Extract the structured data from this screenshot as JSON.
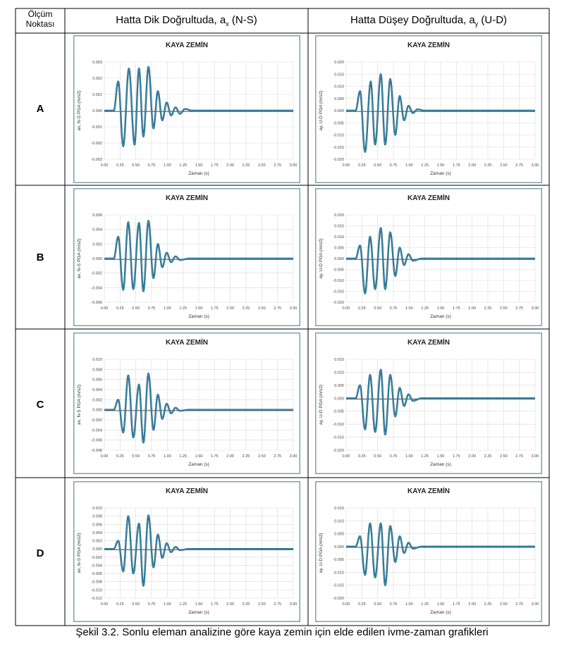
{
  "table": {
    "header_col1": [
      "Ölçüm",
      "Noktası"
    ],
    "header_col2_main": "Hatta Dik Doğrultuda, a",
    "header_col2_sub": "x",
    "header_col2_tail": " (N-S)",
    "header_col3_main": "Hatta Düşey Doğrultuda, a",
    "header_col3_sub": "y",
    "header_col3_tail": " (U-D)",
    "rows": [
      "A",
      "B",
      "C",
      "D"
    ]
  },
  "caption": "Şekil 3.2. Sonlu eleman analizine göre kaya zemin için elde edilen ivme-zaman grafikleri",
  "colors": {
    "line": "#3a8fb0",
    "line_dark": "#1e4f66",
    "baseline": "#555555",
    "grid": "#d9d9d9",
    "panel_border": "#7fa3ad",
    "panel_bg": "#ffffff"
  },
  "chart_data": [
    {
      "type": "line",
      "row": "A",
      "col": "N-S",
      "title": "KAYA ZEMİN",
      "xlabel": "Zaman (s)",
      "ylabel": "ax, N-S PGA (m/s2)",
      "xlim": [
        0,
        3
      ],
      "ylim": [
        -0.003,
        0.003
      ],
      "xticks": [
        "0.00",
        "0.25",
        "0.50",
        "0.75",
        "1.00",
        "1.25",
        "1.50",
        "1.75",
        "2.00",
        "2.25",
        "2.50",
        "2.75",
        "3.00"
      ],
      "yticks": [
        "0.003",
        "0.002",
        "0.001",
        "0.000",
        "-0.001",
        "-0.002",
        "-0.003"
      ],
      "extrema": [
        [
          0.15,
          0
        ],
        [
          0.22,
          0.0018
        ],
        [
          0.3,
          -0.0022
        ],
        [
          0.39,
          0.0026
        ],
        [
          0.48,
          -0.0021
        ],
        [
          0.55,
          0.0026
        ],
        [
          0.62,
          -0.0016
        ],
        [
          0.7,
          0.0027
        ],
        [
          0.78,
          -0.0011
        ],
        [
          0.85,
          0.0012
        ],
        [
          0.92,
          -0.0006
        ],
        [
          0.99,
          0.0005
        ],
        [
          1.06,
          -0.0003
        ],
        [
          1.13,
          0.0002
        ],
        [
          1.2,
          -0.0002
        ],
        [
          1.28,
          0.0001
        ],
        [
          1.4,
          0
        ],
        [
          3.0,
          0
        ]
      ]
    },
    {
      "type": "line",
      "row": "A",
      "col": "U-D",
      "title": "KAYA ZEMİN",
      "xlabel": "Zaman (s)",
      "ylabel": "ay, U-D PGA (m/s2)",
      "xlim": [
        0,
        3
      ],
      "ylim": [
        -0.02,
        0.02
      ],
      "xticks": [
        "0.00",
        "0.25",
        "0.50",
        "0.75",
        "1.00",
        "1.25",
        "1.50",
        "1.75",
        "2.00",
        "2.25",
        "2.50",
        "2.75",
        "3.00"
      ],
      "yticks": [
        "0.020",
        "0.015",
        "0.010",
        "0.005",
        "0.000",
        "-0.005",
        "-0.010",
        "-0.015",
        "-0.020"
      ],
      "extrema": [
        [
          0.15,
          0
        ],
        [
          0.22,
          0.008
        ],
        [
          0.3,
          -0.017
        ],
        [
          0.39,
          0.012
        ],
        [
          0.46,
          -0.014
        ],
        [
          0.55,
          0.015
        ],
        [
          0.62,
          -0.014
        ],
        [
          0.7,
          0.013
        ],
        [
          0.78,
          -0.01
        ],
        [
          0.85,
          0.006
        ],
        [
          0.92,
          -0.004
        ],
        [
          0.99,
          0.002
        ],
        [
          1.06,
          -0.001
        ],
        [
          1.13,
          0.0005
        ],
        [
          1.25,
          0
        ],
        [
          3.0,
          0
        ]
      ]
    },
    {
      "type": "line",
      "row": "B",
      "col": "N-S",
      "title": "KAYA ZEMİN",
      "xlabel": "Zaman (s)",
      "ylabel": "ax, N-S PGA (m/s2)",
      "xlim": [
        0,
        3
      ],
      "ylim": [
        -0.006,
        0.006
      ],
      "xticks": [
        "0.00",
        "0.25",
        "0.50",
        "0.75",
        "1.00",
        "1.25",
        "1.50",
        "1.75",
        "2.00",
        "2.25",
        "2.50",
        "2.75",
        "3.00"
      ],
      "yticks": [
        "0.006",
        "0.004",
        "0.002",
        "0.000",
        "-0.002",
        "-0.004",
        "-0.006"
      ],
      "extrema": [
        [
          0.15,
          0
        ],
        [
          0.22,
          0.003
        ],
        [
          0.3,
          -0.0043
        ],
        [
          0.38,
          0.005
        ],
        [
          0.46,
          -0.0042
        ],
        [
          0.55,
          0.0049
        ],
        [
          0.62,
          -0.0045
        ],
        [
          0.7,
          0.0052
        ],
        [
          0.78,
          -0.0027
        ],
        [
          0.85,
          0.002
        ],
        [
          0.92,
          -0.0012
        ],
        [
          0.99,
          0.0008
        ],
        [
          1.06,
          -0.0005
        ],
        [
          1.13,
          0.0003
        ],
        [
          1.2,
          -0.0002
        ],
        [
          1.35,
          0
        ],
        [
          3.0,
          0
        ]
      ]
    },
    {
      "type": "line",
      "row": "B",
      "col": "U-D",
      "title": "KAYA ZEMİN",
      "xlabel": "Zaman (s)",
      "ylabel": "ay, U-D PGA (m/s2)",
      "xlim": [
        0,
        3
      ],
      "ylim": [
        -0.02,
        0.02
      ],
      "xticks": [
        "0.00",
        "0.25",
        "0.50",
        "0.75",
        "1.00",
        "1.25",
        "1.50",
        "1.75",
        "2.00",
        "2.25",
        "2.50",
        "2.75",
        "3.00"
      ],
      "yticks": [
        "0.020",
        "0.015",
        "0.010",
        "0.005",
        "0.000",
        "-0.005",
        "-0.010",
        "-0.015",
        "-0.020"
      ],
      "extrema": [
        [
          0.15,
          0
        ],
        [
          0.22,
          0.006
        ],
        [
          0.3,
          -0.016
        ],
        [
          0.38,
          0.01
        ],
        [
          0.46,
          -0.014
        ],
        [
          0.55,
          0.014
        ],
        [
          0.62,
          -0.014
        ],
        [
          0.7,
          0.012
        ],
        [
          0.78,
          -0.008
        ],
        [
          0.85,
          0.005
        ],
        [
          0.92,
          -0.003
        ],
        [
          0.99,
          0.002
        ],
        [
          1.06,
          -0.001
        ],
        [
          1.2,
          0
        ],
        [
          3.0,
          0
        ]
      ]
    },
    {
      "type": "line",
      "row": "C",
      "col": "N-S",
      "title": "KAYA ZEMİN",
      "xlabel": "Zaman (s)",
      "ylabel": "ax, N-S PGA (m/s2)",
      "xlim": [
        0,
        3
      ],
      "ylim": [
        -0.008,
        0.01
      ],
      "xticks": [
        "0.00",
        "0.25",
        "0.50",
        "0.75",
        "1.00",
        "1.25",
        "1.50",
        "1.75",
        "2.00",
        "2.25",
        "2.50",
        "2.75",
        "3.00"
      ],
      "yticks": [
        "0.010",
        "0.008",
        "0.006",
        "0.004",
        "0.002",
        "0.000",
        "-0.002",
        "-0.004",
        "-0.006",
        "-0.008"
      ],
      "extrema": [
        [
          0.15,
          0
        ],
        [
          0.22,
          0.002
        ],
        [
          0.3,
          -0.0045
        ],
        [
          0.38,
          0.0068
        ],
        [
          0.46,
          -0.0055
        ],
        [
          0.55,
          0.005
        ],
        [
          0.62,
          -0.0065
        ],
        [
          0.7,
          0.0072
        ],
        [
          0.78,
          -0.004
        ],
        [
          0.85,
          0.003
        ],
        [
          0.92,
          -0.0018
        ],
        [
          0.99,
          0.0012
        ],
        [
          1.06,
          -0.0007
        ],
        [
          1.13,
          0.0004
        ],
        [
          1.2,
          -0.0002
        ],
        [
          1.35,
          0
        ],
        [
          3.0,
          0
        ]
      ]
    },
    {
      "type": "line",
      "row": "C",
      "col": "U-D",
      "title": "KAYA ZEMİN",
      "xlabel": "Zaman (s)",
      "ylabel": "ay, U-D PGA (m/s2)",
      "xlim": [
        0,
        3
      ],
      "ylim": [
        -0.02,
        0.015
      ],
      "xticks": [
        "0.00",
        "0.25",
        "0.50",
        "0.75",
        "1.00",
        "1.25",
        "1.50",
        "1.75",
        "2.00",
        "2.25",
        "2.50",
        "2.75",
        "3.00"
      ],
      "yticks": [
        "0.015",
        "0.010",
        "0.005",
        "0.000",
        "-0.005",
        "-0.010",
        "-0.015",
        "-0.020"
      ],
      "extrema": [
        [
          0.15,
          0
        ],
        [
          0.22,
          0.005
        ],
        [
          0.3,
          -0.012
        ],
        [
          0.38,
          0.009
        ],
        [
          0.46,
          -0.013
        ],
        [
          0.55,
          0.011
        ],
        [
          0.62,
          -0.014
        ],
        [
          0.7,
          0.009
        ],
        [
          0.78,
          -0.007
        ],
        [
          0.85,
          0.004
        ],
        [
          0.92,
          -0.003
        ],
        [
          0.99,
          0.0015
        ],
        [
          1.06,
          -0.001
        ],
        [
          1.2,
          0
        ],
        [
          3.0,
          0
        ]
      ]
    },
    {
      "type": "line",
      "row": "D",
      "col": "N-S",
      "title": "KAYA ZEMİN",
      "xlabel": "Zaman (s)",
      "ylabel": "ax, N-S PGA (m/s2)",
      "xlim": [
        0,
        3
      ],
      "ylim": [
        -0.012,
        0.01
      ],
      "xticks": [
        "0.00",
        "0.25",
        "0.50",
        "0.75",
        "1.00",
        "1.25",
        "1.50",
        "1.75",
        "2.00",
        "2.25",
        "2.50",
        "2.75",
        "3.00"
      ],
      "yticks": [
        "0.010",
        "0.008",
        "0.006",
        "0.004",
        "0.002",
        "0.000",
        "-0.002",
        "-0.004",
        "-0.006",
        "-0.008",
        "-0.010",
        "-0.012"
      ],
      "extrema": [
        [
          0.15,
          0
        ],
        [
          0.22,
          0.002
        ],
        [
          0.3,
          -0.0055
        ],
        [
          0.38,
          0.008
        ],
        [
          0.46,
          -0.006
        ],
        [
          0.55,
          0.0062
        ],
        [
          0.62,
          -0.009
        ],
        [
          0.7,
          0.0082
        ],
        [
          0.78,
          -0.0045
        ],
        [
          0.85,
          0.0035
        ],
        [
          0.92,
          -0.0022
        ],
        [
          0.99,
          0.0014
        ],
        [
          1.06,
          -0.0008
        ],
        [
          1.13,
          0.0005
        ],
        [
          1.2,
          -0.0003
        ],
        [
          1.35,
          0
        ],
        [
          3.0,
          0
        ]
      ]
    },
    {
      "type": "line",
      "row": "D",
      "col": "U-D",
      "title": "KAYA ZEMİN",
      "xlabel": "Zaman (s)",
      "ylabel": "ay, U-D PGA (m/s2)",
      "xlim": [
        0,
        3
      ],
      "ylim": [
        -0.02,
        0.015
      ],
      "xticks": [
        "0.00",
        "0.25",
        "0.50",
        "0.75",
        "1.00",
        "1.25",
        "1.50",
        "1.75",
        "2.00",
        "2.25",
        "2.50",
        "2.75",
        "3.00"
      ],
      "yticks": [
        "0.015",
        "0.010",
        "0.005",
        "0.000",
        "-0.005",
        "-0.010",
        "-0.015",
        "-0.020"
      ],
      "extrema": [
        [
          0.15,
          0
        ],
        [
          0.22,
          0.004
        ],
        [
          0.3,
          -0.011
        ],
        [
          0.38,
          0.009
        ],
        [
          0.46,
          -0.012
        ],
        [
          0.55,
          0.009
        ],
        [
          0.62,
          -0.015
        ],
        [
          0.7,
          0.008
        ],
        [
          0.78,
          -0.006
        ],
        [
          0.85,
          0.004
        ],
        [
          0.92,
          -0.0025
        ],
        [
          0.99,
          0.0015
        ],
        [
          1.06,
          -0.0008
        ],
        [
          1.2,
          0
        ],
        [
          3.0,
          0
        ]
      ]
    }
  ]
}
